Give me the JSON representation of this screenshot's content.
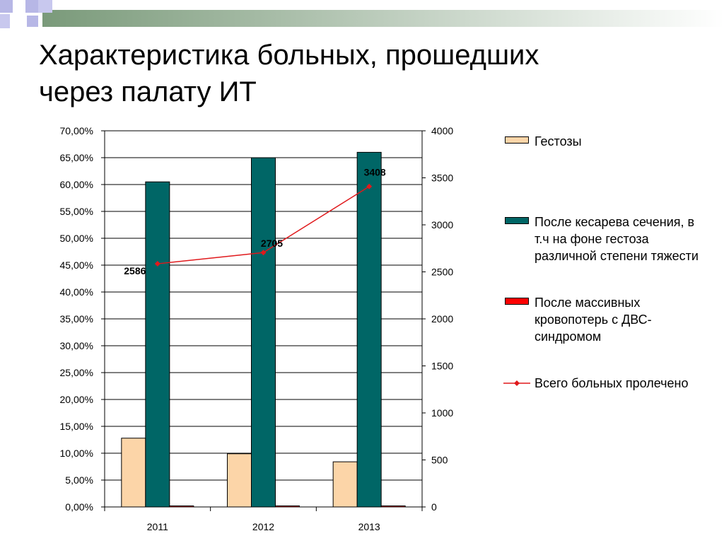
{
  "slide": {
    "title_line1": "Характеристика больных, прошедших",
    "title_line2": "через палату ИТ"
  },
  "colors": {
    "gestoses": "#fcd5a8",
    "cesarean": "#006666",
    "blood_loss": "#ff0000",
    "total": "#e0191c",
    "deco_gradient_start": "#7a9a7a",
    "deco_gradient_end": "#ffffff",
    "deco_squares": "#b7b7e6"
  },
  "chart_data": {
    "type": "bar",
    "categories": [
      "2011",
      "2012",
      "2013"
    ],
    "y_left": {
      "ticks": [
        "0,00%",
        "5,00%",
        "10,00%",
        "15,00%",
        "20,00%",
        "25,00%",
        "30,00%",
        "35,00%",
        "40,00%",
        "45,00%",
        "50,00%",
        "55,00%",
        "60,00%",
        "65,00%",
        "70,00%"
      ],
      "ylim": [
        0,
        70
      ]
    },
    "y_right": {
      "ticks": [
        "0",
        "500",
        "1000",
        "1500",
        "2000",
        "2500",
        "3000",
        "3500",
        "4000"
      ],
      "ylim": [
        0,
        4000
      ]
    },
    "grid": true,
    "legend_position": "right",
    "series": [
      {
        "name": "Гестозы",
        "type": "bar",
        "axis": "left",
        "values": [
          12.8,
          9.9,
          8.4
        ]
      },
      {
        "name": "После кесарева сечения, в т.ч на фоне гестоза различной степени тяжести",
        "type": "bar",
        "axis": "left",
        "values": [
          60.5,
          65.0,
          66.0
        ]
      },
      {
        "name": "После массивных кровопотерь с ДВС-синдромом",
        "type": "bar",
        "axis": "left",
        "values": [
          0,
          0.2,
          0.2
        ]
      },
      {
        "name": "Всего больных пролечено",
        "type": "line",
        "axis": "right",
        "values": [
          2586,
          2705,
          3408
        ],
        "labels": [
          "2586",
          "2705",
          "3408"
        ]
      }
    ]
  }
}
